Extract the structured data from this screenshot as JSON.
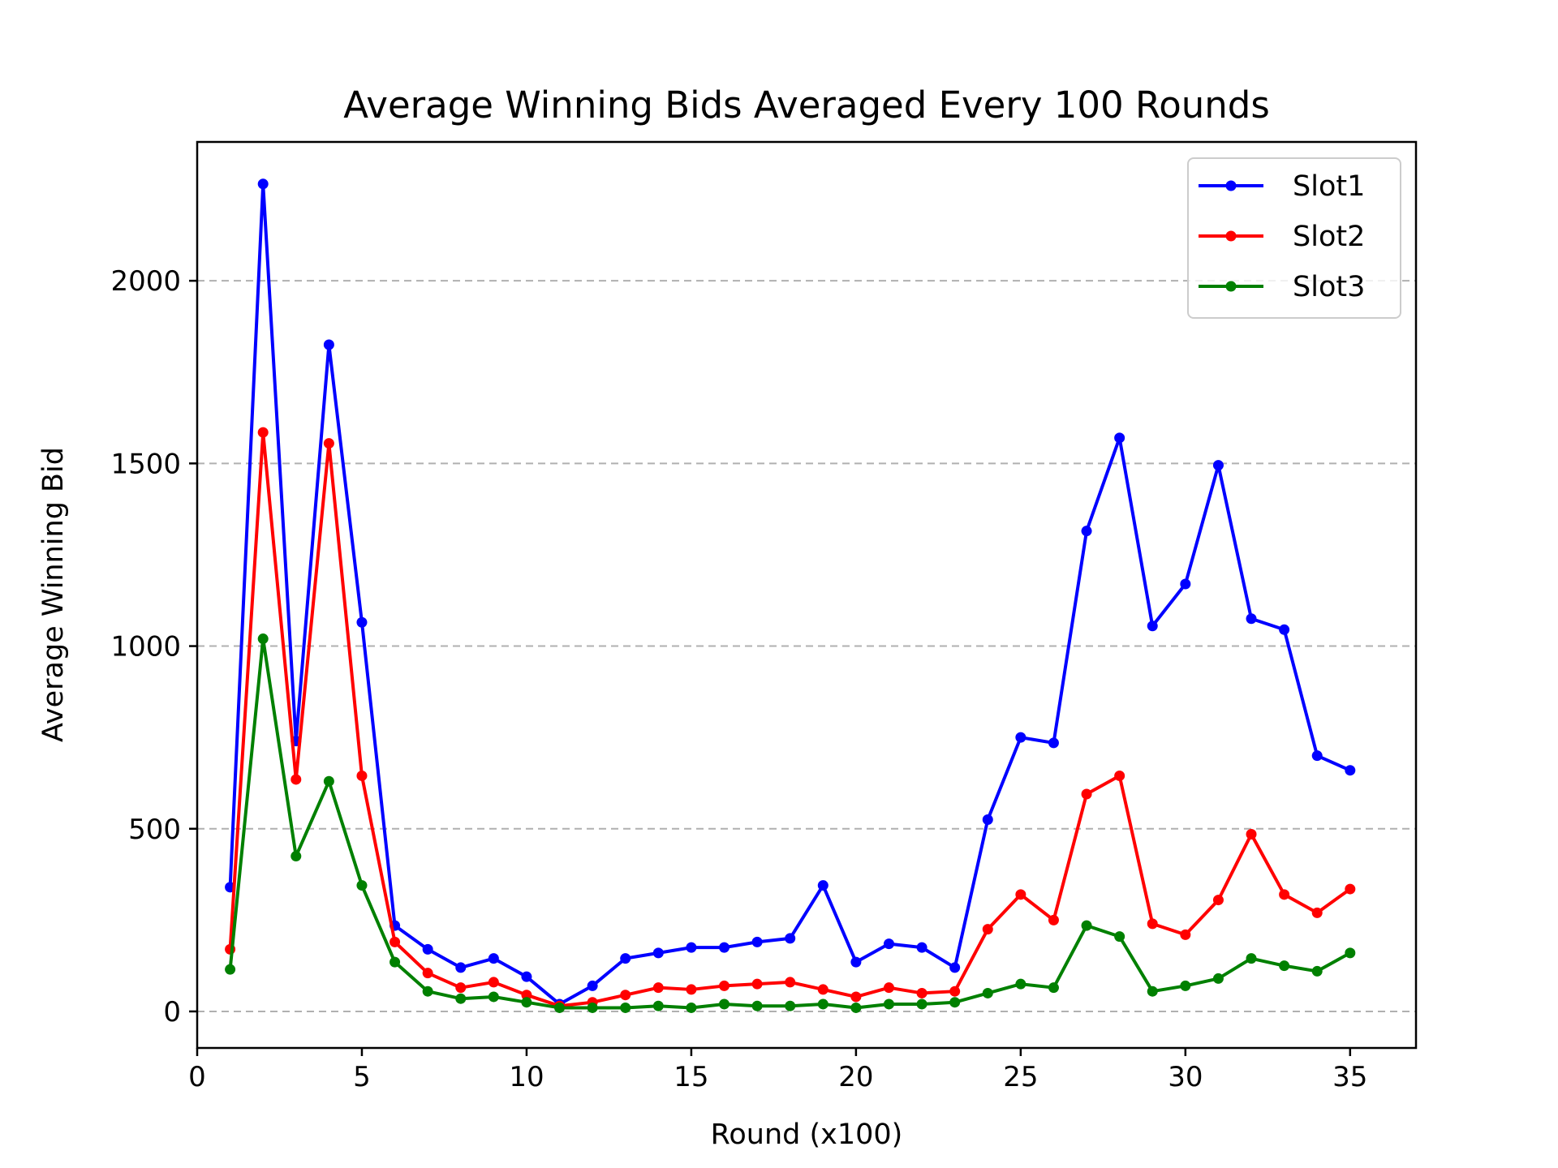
{
  "chart_data": {
    "type": "line",
    "title": "Average Winning Bids Averaged Every 100 Rounds",
    "xlabel": "Round (x100)",
    "ylabel": "Average Winning Bid",
    "xlim": [
      0,
      37
    ],
    "ylim": [
      -100,
      2380
    ],
    "xticks": [
      0,
      5,
      10,
      15,
      20,
      25,
      30,
      35
    ],
    "yticks": [
      0,
      500,
      1000,
      1500,
      2000
    ],
    "grid": "horizontal-dashed",
    "legend_position": "top-right",
    "x": [
      1,
      2,
      3,
      4,
      5,
      6,
      7,
      8,
      9,
      10,
      11,
      12,
      13,
      14,
      15,
      16,
      17,
      18,
      19,
      20,
      21,
      22,
      23,
      24,
      25,
      26,
      27,
      28,
      29,
      30,
      31,
      32,
      33,
      34,
      35
    ],
    "series": [
      {
        "name": "Slot1",
        "color": "#0000ff",
        "values": [
          340,
          2265,
          740,
          1825,
          1065,
          235,
          170,
          120,
          145,
          95,
          20,
          70,
          145,
          160,
          175,
          175,
          190,
          200,
          345,
          135,
          185,
          175,
          120,
          525,
          750,
          735,
          1315,
          1570,
          1055,
          1170,
          1495,
          1075,
          1045,
          700,
          660
        ]
      },
      {
        "name": "Slot2",
        "color": "#ff0000",
        "values": [
          170,
          1585,
          635,
          1555,
          645,
          190,
          105,
          65,
          80,
          45,
          15,
          25,
          45,
          65,
          60,
          70,
          75,
          80,
          60,
          40,
          65,
          50,
          55,
          225,
          320,
          250,
          595,
          645,
          240,
          210,
          305,
          485,
          320,
          270,
          335
        ]
      },
      {
        "name": "Slot3",
        "color": "#008000",
        "values": [
          115,
          1020,
          425,
          630,
          345,
          135,
          55,
          35,
          40,
          25,
          10,
          10,
          10,
          15,
          10,
          20,
          15,
          15,
          20,
          10,
          20,
          20,
          25,
          50,
          75,
          65,
          235,
          205,
          55,
          70,
          90,
          145,
          125,
          110,
          160
        ]
      }
    ]
  }
}
